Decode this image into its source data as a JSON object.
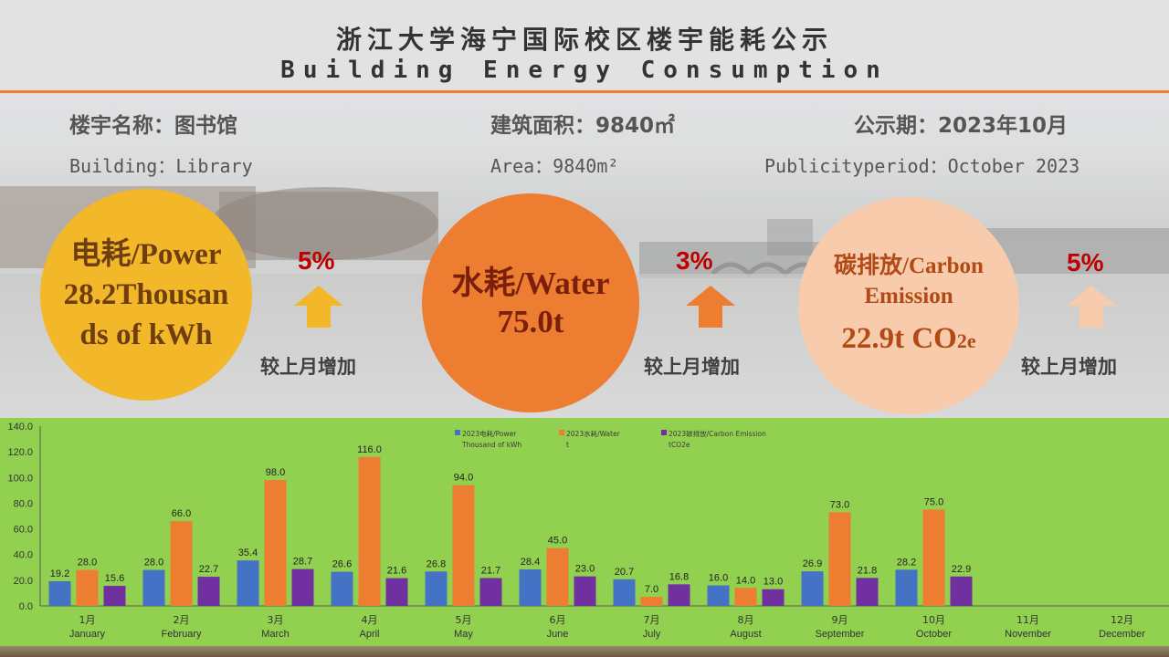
{
  "header": {
    "title_cn": "浙江大学海宁国际校区楼宇能耗公示",
    "title_en": "Building Energy Consumption"
  },
  "info": {
    "building_cn": "楼宇名称：图书馆",
    "area_cn": "建筑面积：9840㎡",
    "period_cn": "公示期：2023年10月",
    "building_en": "Building：Library",
    "area_en": "Area：9840m²",
    "period_en": "Publicityperiod：October 2023"
  },
  "cards": {
    "power": {
      "line1": "电耗/Power",
      "line2": "28.2Thousan",
      "line3": "ds of kWh",
      "change": "5%",
      "compare": "较上月增加"
    },
    "water": {
      "line1": "水耗/Water",
      "line2": "75.0t",
      "change": "3%",
      "compare": "较上月增加"
    },
    "carbon": {
      "line1": "碳排放/Carbon",
      "line2": "Emission",
      "line3_main": "22.9t CO",
      "line3_sub": "2e",
      "change": "5%",
      "compare": "较上月增加"
    }
  },
  "colors": {
    "accent": "#ed7d31",
    "power": "#4472c4",
    "water": "#ed7d31",
    "carbon": "#7030a0",
    "chart_bg": "#92d050",
    "increase_text": "#c00000"
  },
  "chart_data": {
    "type": "bar",
    "categories": [
      "1月",
      "2月",
      "3月",
      "4月",
      "5月",
      "6月",
      "7月",
      "8月",
      "9月",
      "10月",
      "11月",
      "12月"
    ],
    "categories_en": [
      "January",
      "February",
      "March",
      "April",
      "May",
      "June",
      "July",
      "August",
      "September",
      "October",
      "November",
      "December"
    ],
    "series": [
      {
        "name": "2023电耗/Power Thousand of kWh",
        "legend_lines": [
          "2023电耗/Power",
          "Thousand of kWh"
        ],
        "color": "#4472c4",
        "values": [
          19.2,
          28.0,
          35.4,
          26.6,
          26.8,
          28.4,
          20.7,
          16.0,
          26.9,
          28.2,
          null,
          null
        ]
      },
      {
        "name": "2023水耗/Water t",
        "legend_lines": [
          "2023水耗/Water",
          "t"
        ],
        "color": "#ed7d31",
        "values": [
          28.0,
          66.0,
          98.0,
          116.0,
          94.0,
          45.0,
          7.0,
          14.0,
          73.0,
          75.0,
          null,
          null
        ]
      },
      {
        "name": "2023碳排放/Carbon Emission tCO2e",
        "legend_lines": [
          "2023碳排放/Carbon Emission",
          "tCO2e"
        ],
        "color": "#7030a0",
        "values": [
          15.6,
          22.7,
          28.7,
          21.6,
          21.7,
          23.0,
          16.8,
          13.0,
          21.8,
          22.9,
          null,
          null
        ]
      }
    ],
    "y_ticks": [
      "0.0",
      "20.0",
      "40.0",
      "60.0",
      "80.0",
      "100.0",
      "120.0",
      "140.0"
    ],
    "ylim": [
      0,
      140
    ],
    "grid": false,
    "legend": "top"
  }
}
